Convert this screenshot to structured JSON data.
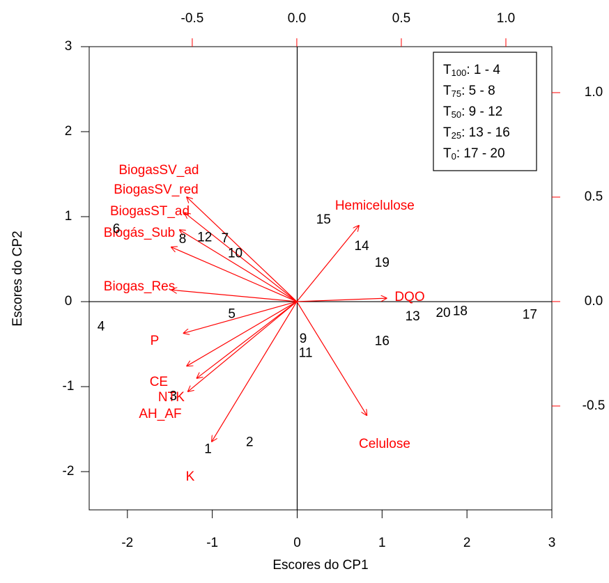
{
  "chart_data": {
    "type": "biplot",
    "xlabel": "Escores do CP1",
    "ylabel": "Escores do CP2",
    "xlim": [
      -2.45,
      3.0
    ],
    "ylim": [
      -2.45,
      3.0
    ],
    "xticks": [
      -2,
      -1,
      0,
      1,
      2,
      3
    ],
    "yticks": [
      -2,
      -1,
      0,
      1,
      2,
      3
    ],
    "x2lim": [
      -0.993,
      1.22
    ],
    "y2lim": [
      -0.997,
      1.22
    ],
    "x2ticks": [
      {
        "value": -0.5,
        "label": "-0.5"
      },
      {
        "value": 0,
        "label": "0.0"
      },
      {
        "value": 0.5,
        "label": "0.5"
      },
      {
        "value": 1,
        "label": "1.0"
      }
    ],
    "y2ticks": [
      {
        "value": -0.5,
        "label": "-0.5"
      },
      {
        "value": 0,
        "label": "0.0"
      },
      {
        "value": 0.5,
        "label": "0.5"
      },
      {
        "value": 1,
        "label": "1.0"
      }
    ],
    "scores": {
      "color": "#000000",
      "labels": [
        "1",
        "2",
        "3",
        "4",
        "5",
        "6",
        "7",
        "8",
        "9",
        "10",
        "11",
        "12",
        "13",
        "14",
        "15",
        "16",
        "17",
        "18",
        "19",
        "20"
      ],
      "x": [
        -1.05,
        -0.56,
        -1.46,
        -2.31,
        -0.77,
        -2.13,
        -0.85,
        -1.35,
        0.07,
        -0.73,
        0.1,
        -1.09,
        1.36,
        0.76,
        0.31,
        1.0,
        2.74,
        1.92,
        1.0,
        1.72
      ],
      "y": [
        -1.74,
        -1.66,
        -1.12,
        -0.3,
        -0.15,
        0.85,
        0.74,
        0.73,
        -0.44,
        0.56,
        -0.61,
        0.75,
        -0.18,
        0.65,
        0.96,
        -0.47,
        -0.16,
        -0.12,
        0.45,
        -0.14
      ]
    },
    "loadings": {
      "color": "#ff0000",
      "names": [
        "BiogasSV_ad",
        "BiogasSV_red",
        "BiogasST_ad",
        "Biogás_Sub",
        "Biogas_Res",
        "P",
        "CE",
        "NTK",
        "AH_AF",
        "K",
        "Hemicelulose",
        "DQO",
        "Celulose"
      ],
      "x": [
        -0.66,
        -0.673,
        -0.703,
        -0.753,
        -0.753,
        -0.68,
        -0.66,
        -0.6,
        -0.653,
        -0.51,
        0.373,
        0.54,
        0.42
      ],
      "y": [
        0.627,
        0.533,
        0.43,
        0.327,
        0.07,
        -0.19,
        -0.387,
        -0.46,
        -0.54,
        -0.84,
        0.457,
        0.02,
        -0.683
      ]
    },
    "legend": {
      "position": "upper right",
      "entries": [
        {
          "base": "T",
          "sub": "100",
          "text": ": 1 - 4"
        },
        {
          "base": "T",
          "sub": "75",
          "text": ": 5 - 8"
        },
        {
          "base": "T",
          "sub": "50",
          "text": ": 9 - 12"
        },
        {
          "base": "T",
          "sub": "25",
          "text": ": 13 - 16"
        },
        {
          "base": "T",
          "sub": "0",
          "text": ": 17 - 20"
        }
      ]
    }
  }
}
